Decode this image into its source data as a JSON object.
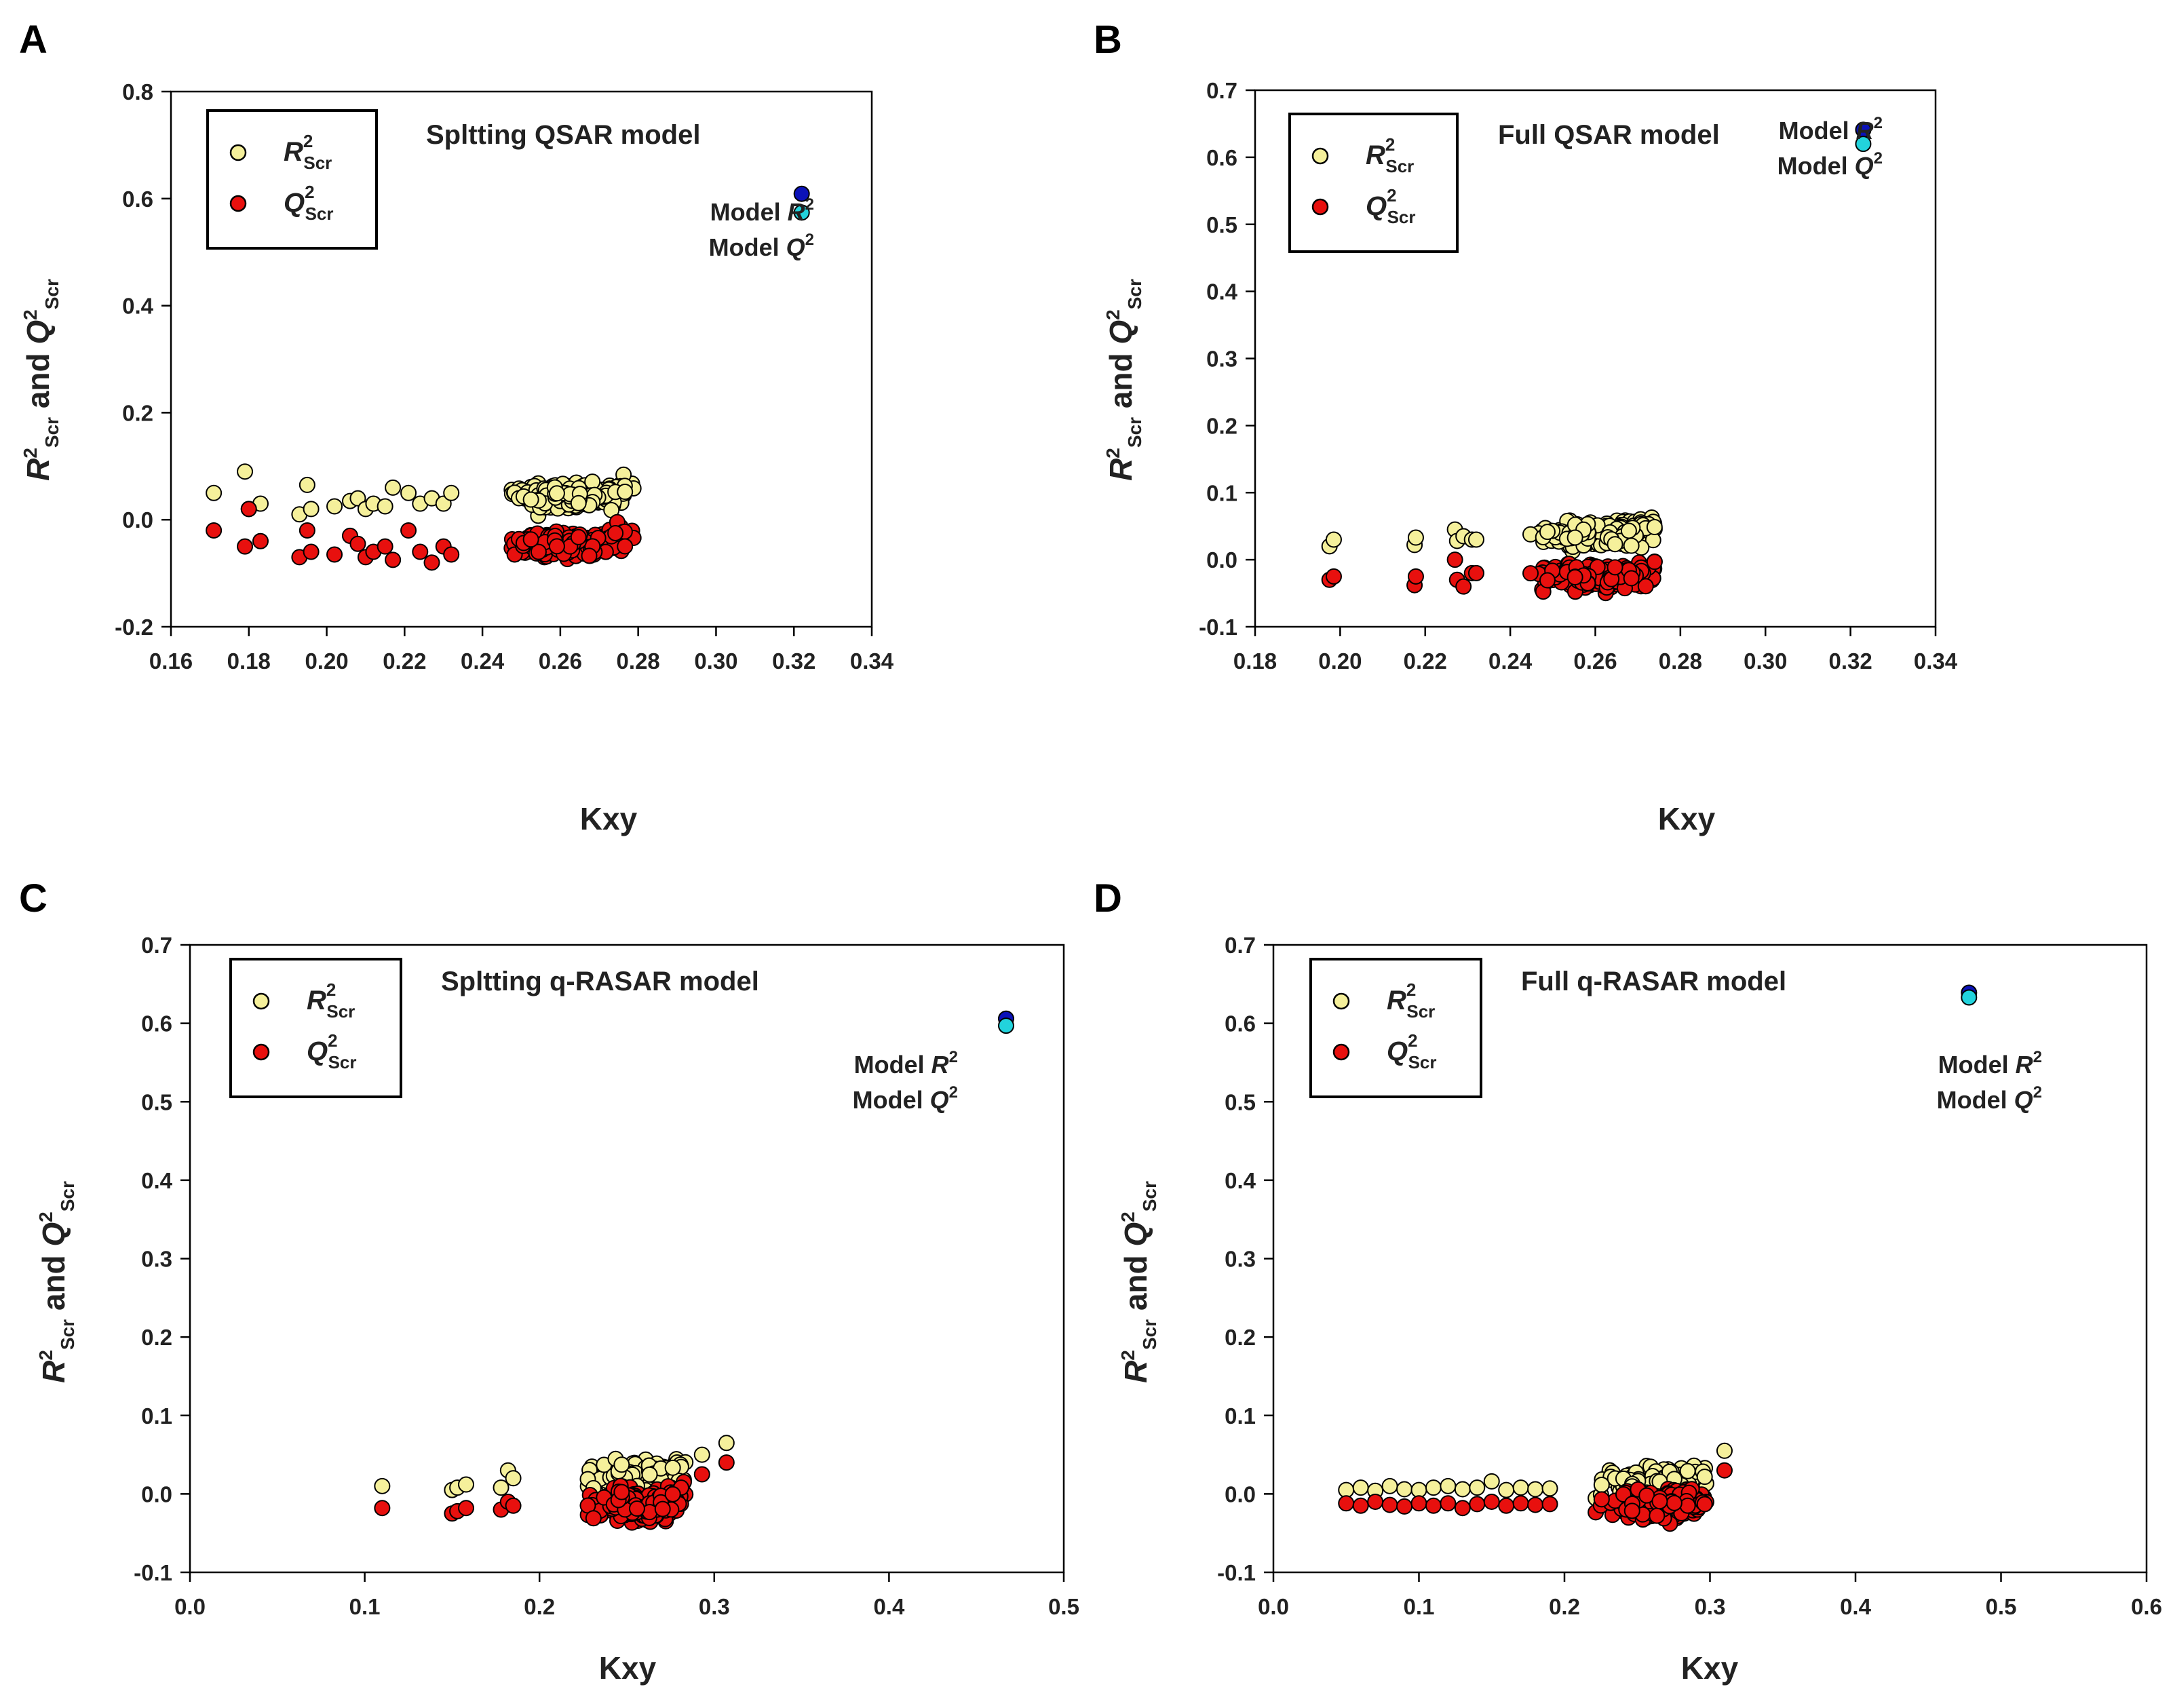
{
  "colors": {
    "r2_scr": "#f5f09b",
    "q2_scr": "#e8100e",
    "model_r2": "#0b12b8",
    "model_q2": "#22d3dc",
    "axis": "#000000"
  },
  "legend": {
    "r_letter": "R",
    "q_letter": "Q",
    "sup": "2",
    "sub": "Scr"
  },
  "model_text": {
    "prefix": "Model ",
    "r_letter": "R",
    "q_letter": "Q",
    "sup": "2"
  },
  "axis_text": {
    "xlabel": "Kxy",
    "ylabel_r": "R",
    "ylabel_sup": "2",
    "ylabel_sub": "Scr",
    "ylabel_and": " and ",
    "ylabel_q": "Q"
  },
  "chart_data": [
    {
      "panel": "A",
      "type": "scatter",
      "title": "Spltting QSAR model",
      "xlabel": "Kxy",
      "xlim": [
        0.16,
        0.34
      ],
      "ylim": [
        -0.2,
        0.8
      ],
      "xticks": [
        "0.16",
        "0.18",
        "0.20",
        "0.22",
        "0.24",
        "0.26",
        "0.28",
        "0.30",
        "0.32",
        "0.34"
      ],
      "yticks": [
        "-0.2",
        "0.0",
        "0.2",
        "0.4",
        "0.6",
        "0.8"
      ],
      "cluster": {
        "x_range": [
          0.235,
          0.28
        ],
        "r2_mean": 0.045,
        "q2_mean": -0.045
      },
      "scattered_points": [
        {
          "x": 0.171,
          "r2": 0.05,
          "q2": -0.02
        },
        {
          "x": 0.179,
          "r2": 0.09,
          "q2": -0.05
        },
        {
          "x": 0.18,
          "r2": 0.02,
          "q2": 0.02
        },
        {
          "x": 0.183,
          "r2": 0.03,
          "q2": -0.04
        },
        {
          "x": 0.193,
          "r2": 0.01,
          "q2": -0.07
        },
        {
          "x": 0.195,
          "r2": 0.065,
          "q2": -0.02
        },
        {
          "x": 0.196,
          "r2": 0.02,
          "q2": -0.06
        },
        {
          "x": 0.202,
          "r2": 0.025,
          "q2": -0.065
        },
        {
          "x": 0.206,
          "r2": 0.035,
          "q2": -0.03
        },
        {
          "x": 0.208,
          "r2": 0.04,
          "q2": -0.045
        },
        {
          "x": 0.21,
          "r2": 0.02,
          "q2": -0.07
        },
        {
          "x": 0.212,
          "r2": 0.03,
          "q2": -0.06
        },
        {
          "x": 0.215,
          "r2": 0.025,
          "q2": -0.05
        },
        {
          "x": 0.217,
          "r2": 0.06,
          "q2": -0.075
        },
        {
          "x": 0.221,
          "r2": 0.05,
          "q2": -0.02
        },
        {
          "x": 0.224,
          "r2": 0.03,
          "q2": -0.06
        },
        {
          "x": 0.227,
          "r2": 0.04,
          "q2": -0.08
        },
        {
          "x": 0.23,
          "r2": 0.03,
          "q2": -0.05
        },
        {
          "x": 0.232,
          "r2": 0.05,
          "q2": -0.065
        }
      ],
      "model": {
        "x": 0.322,
        "r2": 0.609,
        "q2": 0.574
      }
    },
    {
      "panel": "B",
      "type": "scatter",
      "title": "Full QSAR model",
      "xlabel": "Kxy",
      "xlim": [
        0.18,
        0.34
      ],
      "ylim": [
        -0.1,
        0.7
      ],
      "xticks": [
        "0.18",
        "0.20",
        "0.22",
        "0.24",
        "0.26",
        "0.28",
        "0.30",
        "0.32",
        "0.34"
      ],
      "yticks": [
        "-0.1",
        "0.0",
        "0.1",
        "0.2",
        "0.3",
        "0.4",
        "0.5",
        "0.6",
        "0.7"
      ],
      "cluster": {
        "x_range": [
          0.236,
          0.275
        ],
        "r2_mean": 0.038,
        "q2_mean": -0.025
      },
      "scattered_points": [
        {
          "x": 0.1975,
          "r2": 0.02,
          "q2": -0.03
        },
        {
          "x": 0.1985,
          "r2": 0.03,
          "q2": -0.025
        },
        {
          "x": 0.2175,
          "r2": 0.022,
          "q2": -0.038
        },
        {
          "x": 0.2178,
          "r2": 0.033,
          "q2": -0.025
        },
        {
          "x": 0.227,
          "r2": 0.045,
          "q2": 0.0
        },
        {
          "x": 0.2275,
          "r2": 0.028,
          "q2": -0.03
        },
        {
          "x": 0.229,
          "r2": 0.035,
          "q2": -0.04
        },
        {
          "x": 0.231,
          "r2": 0.03,
          "q2": -0.02
        },
        {
          "x": 0.232,
          "r2": 0.03,
          "q2": -0.02
        }
      ],
      "model": {
        "x": 0.323,
        "r2": 0.641,
        "q2": 0.62
      }
    },
    {
      "panel": "C",
      "type": "scatter",
      "title": "Spltting q-RASAR model",
      "xlabel": "Kxy",
      "xlim": [
        0.0,
        0.5
      ],
      "ylim": [
        -0.1,
        0.7
      ],
      "xticks": [
        "0.0",
        "0.1",
        "0.2",
        "0.3",
        "0.4",
        "0.5"
      ],
      "yticks": [
        "-0.1",
        "0.0",
        "0.1",
        "0.2",
        "0.3",
        "0.4",
        "0.5",
        "0.6",
        "0.7"
      ],
      "cluster": {
        "x_range": [
          0.21,
          0.285
        ],
        "r2_mean": 0.02,
        "q2_mean": -0.015
      },
      "scattered_points": [
        {
          "x": 0.11,
          "r2": 0.01,
          "q2": -0.018
        },
        {
          "x": 0.15,
          "r2": 0.005,
          "q2": -0.025
        },
        {
          "x": 0.153,
          "r2": 0.008,
          "q2": -0.022
        },
        {
          "x": 0.158,
          "r2": 0.012,
          "q2": -0.018
        },
        {
          "x": 0.178,
          "r2": 0.008,
          "q2": -0.02
        },
        {
          "x": 0.182,
          "r2": 0.03,
          "q2": -0.01
        },
        {
          "x": 0.185,
          "r2": 0.02,
          "q2": -0.015
        },
        {
          "x": 0.293,
          "r2": 0.05,
          "q2": 0.025
        },
        {
          "x": 0.307,
          "r2": 0.065,
          "q2": 0.04
        }
      ],
      "model": {
        "x": 0.467,
        "r2": 0.606,
        "q2": 0.597
      }
    },
    {
      "panel": "D",
      "type": "scatter",
      "title": "Full q-RASAR model",
      "xlabel": "Kxy",
      "xlim": [
        0.0,
        0.6
      ],
      "ylim": [
        -0.1,
        0.7
      ],
      "xticks": [
        "0.0",
        "0.1",
        "0.2",
        "0.3",
        "0.4",
        "0.5",
        "0.6"
      ],
      "yticks": [
        "-0.1",
        "0.0",
        "0.1",
        "0.2",
        "0.3",
        "0.4",
        "0.5",
        "0.6",
        "0.7"
      ],
      "cluster": {
        "x_range": [
          0.2,
          0.3
        ],
        "r2_mean": 0.012,
        "q2_mean": -0.012
      },
      "scattered_points": [
        {
          "x": 0.05,
          "r2": 0.005,
          "q2": -0.012
        },
        {
          "x": 0.06,
          "r2": 0.008,
          "q2": -0.015
        },
        {
          "x": 0.07,
          "r2": 0.004,
          "q2": -0.01
        },
        {
          "x": 0.08,
          "r2": 0.01,
          "q2": -0.014
        },
        {
          "x": 0.09,
          "r2": 0.006,
          "q2": -0.016
        },
        {
          "x": 0.1,
          "r2": 0.005,
          "q2": -0.012
        },
        {
          "x": 0.11,
          "r2": 0.008,
          "q2": -0.015
        },
        {
          "x": 0.12,
          "r2": 0.01,
          "q2": -0.012
        },
        {
          "x": 0.13,
          "r2": 0.006,
          "q2": -0.018
        },
        {
          "x": 0.14,
          "r2": 0.008,
          "q2": -0.013
        },
        {
          "x": 0.15,
          "r2": 0.016,
          "q2": -0.01
        },
        {
          "x": 0.16,
          "r2": 0.005,
          "q2": -0.015
        },
        {
          "x": 0.17,
          "r2": 0.008,
          "q2": -0.012
        },
        {
          "x": 0.18,
          "r2": 0.006,
          "q2": -0.014
        },
        {
          "x": 0.19,
          "r2": 0.007,
          "q2": -0.013
        },
        {
          "x": 0.31,
          "r2": 0.055,
          "q2": 0.03
        }
      ],
      "model": {
        "x": 0.478,
        "r2": 0.639,
        "q2": 0.633
      }
    }
  ]
}
